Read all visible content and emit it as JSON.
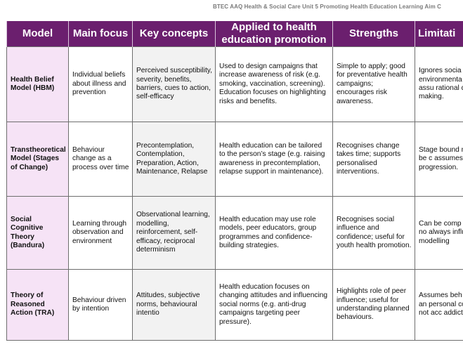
{
  "header": {
    "text": "BTEC AAQ Health & Social Care Unit 5 Promoting Health Education Learning Aim C"
  },
  "table": {
    "columns": [
      "Model",
      "Main focus",
      "Key concepts",
      "Applied to health education promotion",
      "Strengths",
      "Limitati"
    ],
    "rows": [
      {
        "model": "Health Belief Model (HBM)",
        "focus": "Individual beliefs about illness and prevention",
        "concepts": "Perceived susceptibility, severity, benefits, barriers, cues to action, self-efficacy",
        "applied": "Used to design campaigns that increase awareness of risk (e.g. smoking, vaccination, screening). Education focuses on highlighting risks and benefits.",
        "strengths": "Simple to apply; good for preventative health campaigns; encourages risk awareness.",
        "limits": "Ignores socia environmenta factors; assu rational decis making."
      },
      {
        "model": "Transtheoretical Model (Stages of Change)",
        "focus": "Behaviour change as a process over time",
        "concepts": "Precontemplation, Contemplation, Preparation, Action, Maintenance, Relapse",
        "applied": "Health education can be tailored to the person’s stage (e.g. raising awareness in precontemplation, relapse support in maintenance).",
        "strengths": "Recognises change takes time; supports personalised interventions.",
        "limits": "Stage bound may not be c assumes line progression."
      },
      {
        "model": "Social Cognitive Theory (Bandura)",
        "focus": "Learning through observation and environment",
        "concepts": "Observational learning, modelling, reinforcement, self-efficacy, reciprocal determinism",
        "applied": "Health education may use role models, peer educators, group programmes and confidence-building strategies.",
        "strengths": "Recognises social influence and confidence; useful for youth health promotion.",
        "limits": "Can be comp behaviour no always influe by modelling"
      },
      {
        "model": "Theory of Reasoned Action (TRA)",
        "focus": "Behaviour driven by intention",
        "concepts": "Attitudes, subjective norms, behavioural intentio",
        "applied": "Health education focuses on changing attitudes and influencing social norms (e.g. anti-drug campaigns targeting peer pressure).",
        "strengths": "Highlights role of peer influence; useful for understanding planned behaviours.",
        "limits": "Assumes beh is rational an personal con does not acc addiction or h"
      }
    ]
  },
  "colors": {
    "header_bg": "#6b1f6e",
    "model_cell_bg": "#f6e3f6",
    "concepts_cell_bg": "#f2f2f2"
  }
}
